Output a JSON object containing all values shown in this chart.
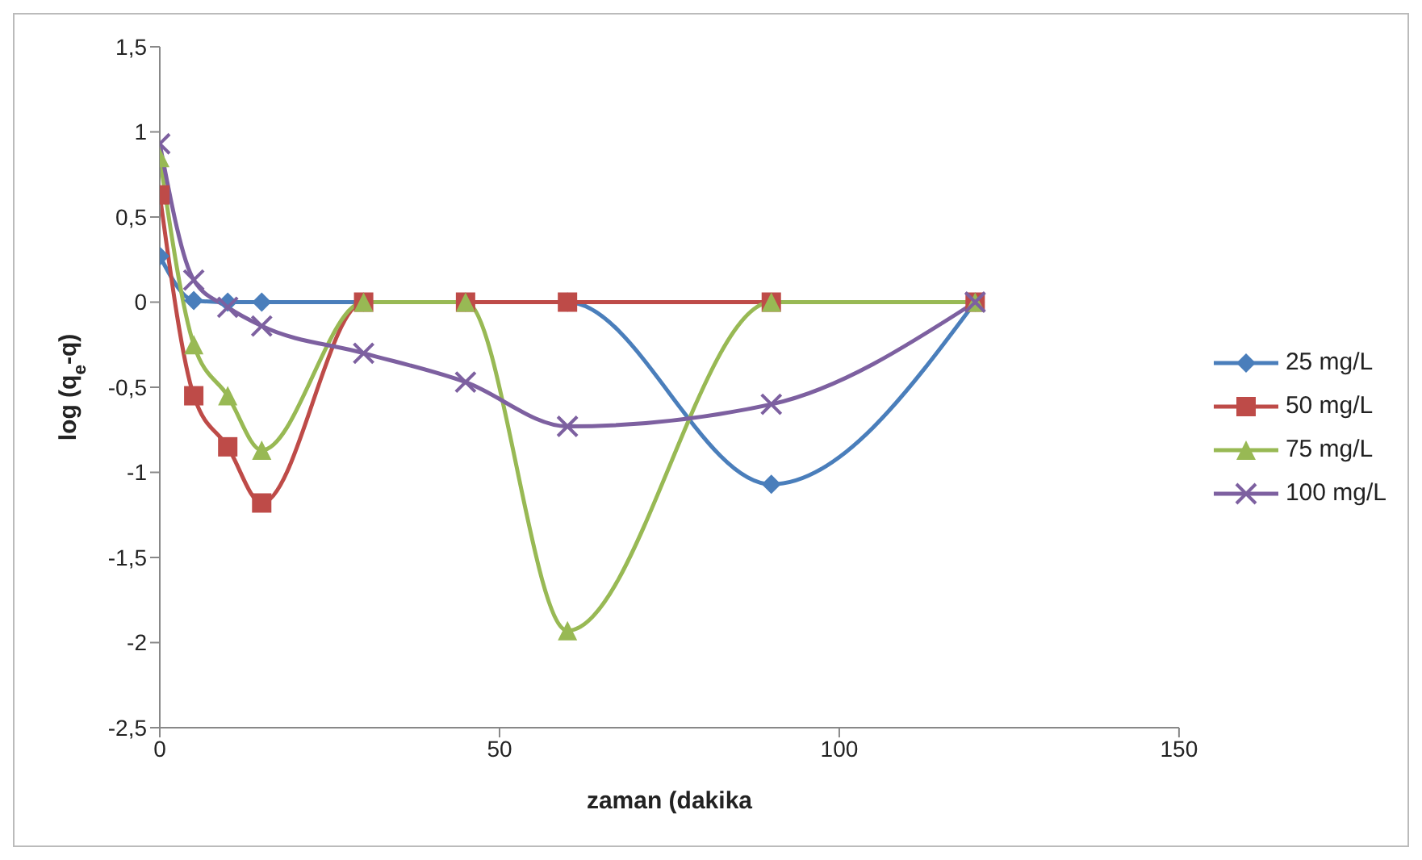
{
  "chart_data": {
    "type": "line",
    "xlabel": "zaman (dakika",
    "ylabel": "log (q$_{e}$-q)",
    "x": [
      0,
      5,
      10,
      15,
      30,
      45,
      60,
      90,
      120
    ],
    "series": [
      {
        "name": "25 mg/L",
        "color": "#4a7ebb",
        "marker": "diamond",
        "values": [
          0.27,
          0.01,
          0,
          0,
          0,
          0,
          0,
          -1.07,
          0
        ]
      },
      {
        "name": "50 mg/L",
        "color": "#be4b48",
        "marker": "square",
        "values": [
          0.63,
          -0.55,
          -0.85,
          -1.18,
          0,
          0,
          0,
          0,
          0
        ]
      },
      {
        "name": "75 mg/L",
        "color": "#98b954",
        "marker": "triangle",
        "values": [
          0.85,
          -0.25,
          -0.55,
          -0.87,
          0,
          0,
          -1.93,
          0,
          0
        ]
      },
      {
        "name": "100 mg/L",
        "color": "#7d60a0",
        "marker": "cross",
        "values": [
          0.93,
          0.13,
          -0.03,
          -0.14,
          -0.3,
          -0.47,
          -0.73,
          -0.6,
          0
        ]
      }
    ],
    "xlim": [
      0,
      150
    ],
    "xticks": [
      0,
      50,
      100,
      150
    ],
    "ylim": [
      -2.5,
      1.5
    ],
    "yticks": [
      {
        "value": -2.5,
        "label": "-2,5"
      },
      -2,
      {
        "value": -1.5,
        "label": "-1,5"
      },
      -1,
      {
        "value": -0.5,
        "label": "-0,5"
      },
      0,
      {
        "value": 0.5,
        "label": "0,5"
      },
      1,
      {
        "value": 1.5,
        "label": "1,5"
      }
    ],
    "grid": false,
    "legend": "right",
    "line_style": "solid"
  }
}
